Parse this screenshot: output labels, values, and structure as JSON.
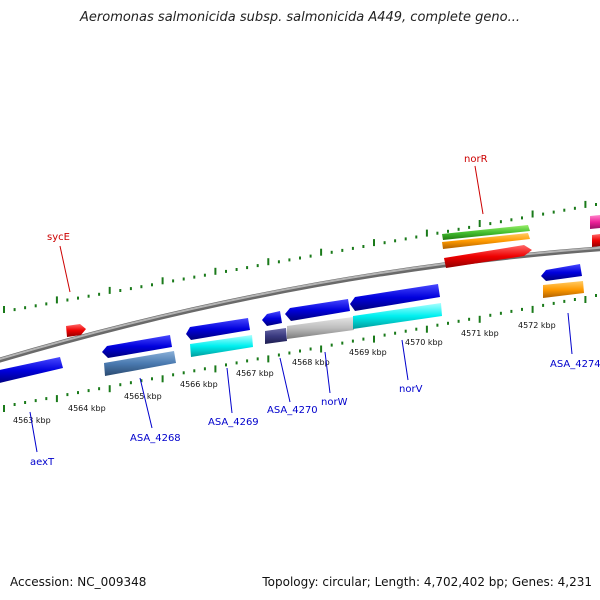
{
  "title": "Aeromonas salmonicida subsp. salmonicida A449, complete geno...",
  "footer": {
    "accession": "Accession: NC_009348",
    "summary": "Topology: circular; Length: 4,702,402 bp; Genes: 4,231"
  },
  "colors": {
    "backbone": "#808080",
    "tick": "#1a7a1a",
    "label_blue": "#0000cc",
    "label_red": "#cc0000"
  },
  "kbp_ticks": [
    {
      "kbp": 4563,
      "label": "4563 kbp"
    },
    {
      "kbp": 4564,
      "label": "4564 kbp"
    },
    {
      "kbp": 4565,
      "label": "4565 kbp"
    },
    {
      "kbp": 4566,
      "label": "4566 kbp"
    },
    {
      "kbp": 4567,
      "label": "4567 kbp"
    },
    {
      "kbp": 4568,
      "label": "4568 kbp"
    },
    {
      "kbp": 4569,
      "label": "4569 kbp"
    },
    {
      "kbp": 4570,
      "label": "4570 kbp"
    },
    {
      "kbp": 4571,
      "label": "4571 kbp"
    },
    {
      "kbp": 4572,
      "label": "4572 kbp"
    }
  ],
  "gene_labels": [
    {
      "id": "sycE",
      "text": "sycE",
      "color": "#cc0000"
    },
    {
      "id": "norR",
      "text": "norR",
      "color": "#cc0000"
    },
    {
      "id": "aexT",
      "text": "aexT",
      "color": "#0000cc"
    },
    {
      "id": "ASA_4268",
      "text": "ASA_4268",
      "color": "#0000cc"
    },
    {
      "id": "ASA_4269",
      "text": "ASA_4269",
      "color": "#0000cc"
    },
    {
      "id": "ASA_4270",
      "text": "ASA_4270",
      "color": "#0000cc"
    },
    {
      "id": "norW",
      "text": "norW",
      "color": "#0000cc"
    },
    {
      "id": "norV",
      "text": "norV",
      "color": "#0000cc"
    },
    {
      "id": "ASA_4274",
      "text": "ASA_4274",
      "color": "#0000cc"
    }
  ]
}
